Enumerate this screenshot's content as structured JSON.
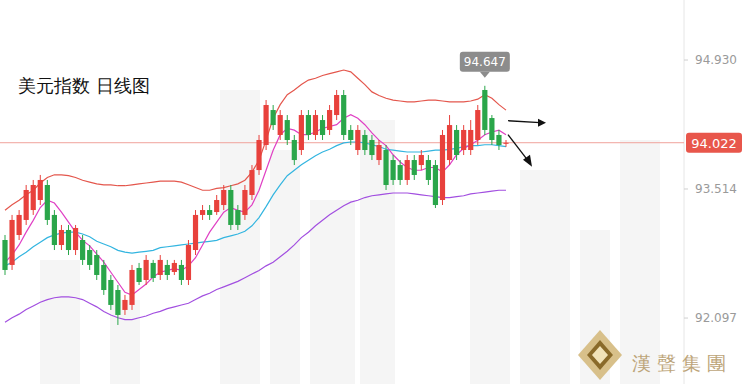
{
  "chart_data": {
    "type": "candlestick",
    "title": "美元指数 日线图",
    "categories": [
      null,
      null,
      null,
      null,
      null,
      null,
      null,
      null,
      null,
      null,
      null,
      null,
      null,
      null,
      null,
      null,
      null,
      null,
      null,
      null,
      null,
      null,
      null,
      null,
      null,
      null,
      null,
      null,
      null,
      null,
      null,
      null,
      null,
      null,
      null,
      null,
      null,
      null,
      null,
      null,
      null,
      null,
      null,
      null,
      null,
      null,
      null,
      null,
      null,
      null,
      null,
      null,
      null,
      null,
      null,
      null,
      null,
      null,
      null,
      null,
      null,
      null,
      null,
      null,
      null,
      null,
      null,
      null,
      null,
      null,
      null,
      null
    ],
    "open": [
      92.954,
      92.68,
      93.009,
      93.174,
      93.283,
      93.393,
      93.558,
      93.229,
      92.899,
      93.064,
      92.844,
      92.954,
      92.844,
      92.789,
      92.68,
      92.515,
      92.405,
      92.186,
      92.241,
      92.647,
      92.515,
      92.702,
      92.57,
      92.68,
      92.603,
      92.68,
      92.515,
      92.844,
      93.229,
      93.283,
      93.261,
      93.338,
      93.503,
      93.283,
      93.229,
      93.448,
      93.722,
      93.997,
      94.381,
      94.107,
      94.271,
      94.052,
      93.942,
      94.326,
      94.107,
      94.271,
      94.162,
      94.326,
      94.546,
      94.162,
      93.942,
      94.107,
      94.052,
      93.832,
      93.942,
      93.832,
      93.777,
      93.613,
      93.832,
      93.777,
      93.832,
      93.777,
      93.393,
      93.832,
      94.162,
      93.942,
      93.942,
      94.052,
      94.601,
      94.293,
      94.107,
      94.01
    ],
    "high": [
      93.009,
      93.229,
      93.283,
      93.558,
      93.613,
      93.668,
      93.613,
      93.283,
      93.119,
      93.119,
      93.119,
      93.009,
      92.899,
      92.844,
      92.735,
      92.57,
      92.46,
      92.351,
      92.68,
      92.702,
      92.789,
      92.735,
      92.789,
      92.735,
      92.735,
      92.735,
      92.954,
      93.283,
      93.338,
      93.338,
      93.448,
      93.558,
      93.558,
      93.338,
      93.558,
      93.777,
      94.107,
      94.491,
      94.436,
      94.381,
      94.326,
      94.107,
      94.381,
      94.381,
      94.381,
      94.326,
      94.436,
      94.601,
      94.601,
      94.216,
      94.216,
      94.162,
      94.107,
      94.052,
      93.997,
      93.887,
      93.832,
      93.887,
      93.887,
      93.942,
      93.887,
      93.832,
      94.162,
      94.326,
      94.216,
      94.216,
      94.271,
      94.436,
      94.647,
      94.326,
      94.162,
      94.052
    ],
    "low": [
      92.57,
      92.625,
      92.954,
      93.119,
      93.229,
      93.338,
      93.119,
      92.844,
      92.844,
      92.789,
      92.789,
      92.68,
      92.625,
      92.515,
      92.351,
      92.186,
      92.021,
      92.131,
      92.186,
      92.46,
      92.46,
      92.493,
      92.515,
      92.515,
      92.57,
      92.46,
      92.46,
      92.789,
      93.174,
      93.174,
      93.229,
      93.283,
      93.064,
      93.064,
      93.174,
      93.393,
      93.668,
      93.942,
      94.162,
      94.052,
      93.997,
      93.777,
      93.887,
      94.052,
      94.052,
      94.052,
      94.107,
      94.271,
      94.052,
      93.997,
      93.887,
      93.887,
      93.832,
      93.777,
      93.503,
      93.558,
      93.558,
      93.558,
      93.613,
      93.722,
      93.558,
      93.305,
      93.338,
      93.777,
      93.832,
      93.887,
      93.887,
      93.997,
      94.107,
      93.997,
      93.942,
      93.977
    ],
    "close": [
      92.625,
      93.174,
      93.229,
      93.503,
      93.558,
      93.613,
      93.174,
      92.899,
      93.064,
      92.844,
      93.086,
      92.735,
      92.68,
      92.57,
      92.405,
      92.241,
      92.131,
      92.296,
      92.625,
      92.493,
      92.735,
      92.537,
      92.735,
      92.57,
      92.702,
      92.515,
      92.899,
      93.229,
      93.283,
      93.229,
      93.393,
      93.503,
      93.119,
      93.119,
      93.503,
      93.722,
      94.052,
      94.436,
      94.216,
      94.326,
      94.052,
      93.832,
      94.326,
      94.107,
      94.326,
      94.107,
      94.381,
      94.546,
      94.107,
      94.052,
      94.162,
      93.942,
      93.887,
      93.997,
      93.558,
      93.613,
      93.613,
      93.832,
      93.668,
      93.887,
      93.613,
      93.338,
      94.107,
      94.216,
      93.887,
      94.162,
      94.162,
      94.381,
      94.162,
      94.052,
      93.997,
      94.022
    ],
    "series": [
      {
        "type": "line",
        "color": "#e4574d",
        "values": [
          93.28,
          93.34,
          93.39,
          93.45,
          93.5,
          93.58,
          93.64,
          93.67,
          93.67,
          93.66,
          93.64,
          93.61,
          93.59,
          93.57,
          93.56,
          93.56,
          93.55,
          93.55,
          93.56,
          93.57,
          93.58,
          93.59,
          93.6,
          93.6,
          93.6,
          93.59,
          93.56,
          93.53,
          93.5,
          93.5,
          93.52,
          93.53,
          93.55,
          93.57,
          93.61,
          93.7,
          93.83,
          94.05,
          94.29,
          94.44,
          94.55,
          94.6,
          94.66,
          94.71,
          94.73,
          94.76,
          94.78,
          94.8,
          94.82,
          94.8,
          94.73,
          94.66,
          94.58,
          94.54,
          94.51,
          94.49,
          94.48,
          94.47,
          94.47,
          94.48,
          94.49,
          94.49,
          94.48,
          94.47,
          94.47,
          94.47,
          94.48,
          94.5,
          94.55,
          94.51,
          94.44,
          94.38
        ]
      },
      {
        "type": "line",
        "color": "#33b5e0",
        "values": [
          92.67,
          92.71,
          92.77,
          92.82,
          92.88,
          92.93,
          92.98,
          93.01,
          93.03,
          93.04,
          93.04,
          93.02,
          92.99,
          92.94,
          92.91,
          92.88,
          92.84,
          92.82,
          92.81,
          92.82,
          92.83,
          92.84,
          92.87,
          92.88,
          92.89,
          92.9,
          92.91,
          92.92,
          92.93,
          92.94,
          92.95,
          92.98,
          93.0,
          93.02,
          93.05,
          93.11,
          93.2,
          93.32,
          93.45,
          93.56,
          93.66,
          93.72,
          93.78,
          93.83,
          93.88,
          93.92,
          93.95,
          93.99,
          94.02,
          94.03,
          94.03,
          94.02,
          94.0,
          93.98,
          93.95,
          93.94,
          93.93,
          93.92,
          93.92,
          93.92,
          93.93,
          93.94,
          93.94,
          93.95,
          93.96,
          93.98,
          93.99,
          93.99,
          94.0,
          94.0,
          93.99,
          93.98
        ]
      },
      {
        "type": "line",
        "color": "#a24fe0",
        "values": [
          92.05,
          92.1,
          92.14,
          92.19,
          92.23,
          92.27,
          92.3,
          92.32,
          92.33,
          92.33,
          92.32,
          92.3,
          92.26,
          92.22,
          92.17,
          92.13,
          92.1,
          92.08,
          92.08,
          92.1,
          92.12,
          92.15,
          92.17,
          92.2,
          92.22,
          92.24,
          92.26,
          92.3,
          92.34,
          92.37,
          92.41,
          92.44,
          92.47,
          92.5,
          92.54,
          92.58,
          92.62,
          92.67,
          92.71,
          92.77,
          92.83,
          92.9,
          92.98,
          93.04,
          93.11,
          93.17,
          93.23,
          93.28,
          93.33,
          93.37,
          93.39,
          93.42,
          93.44,
          93.45,
          93.46,
          93.47,
          93.47,
          93.47,
          93.46,
          93.45,
          93.44,
          93.43,
          93.42,
          93.42,
          93.43,
          93.44,
          93.46,
          93.47,
          93.48,
          93.49,
          93.5,
          93.5
        ]
      },
      {
        "type": "line",
        "color": "#e040c4",
        "values": [
          92.71,
          92.79,
          92.9,
          93.04,
          93.17,
          93.31,
          93.39,
          93.36,
          93.26,
          93.15,
          93.04,
          92.95,
          92.89,
          92.8,
          92.71,
          92.6,
          92.49,
          92.38,
          92.35,
          92.41,
          92.47,
          92.55,
          92.6,
          92.62,
          92.64,
          92.62,
          92.67,
          92.76,
          92.9,
          93.04,
          93.15,
          93.26,
          93.31,
          93.28,
          93.26,
          93.34,
          93.5,
          93.72,
          93.94,
          94.11,
          94.18,
          94.16,
          94.11,
          94.11,
          94.14,
          94.18,
          94.2,
          94.22,
          94.29,
          94.33,
          94.29,
          94.22,
          94.13,
          94.05,
          93.99,
          93.89,
          93.81,
          93.75,
          93.72,
          93.72,
          93.75,
          93.75,
          93.7,
          93.78,
          93.89,
          93.96,
          94.0,
          94.05,
          94.11,
          94.14,
          94.16,
          94.11
        ]
      }
    ],
    "ylim": [
      91.373,
      95.589
    ],
    "yticks": [
      {
        "value": 94.93,
        "label": "94.930"
      },
      {
        "value": 93.514,
        "label": "93.514"
      },
      {
        "value": 92.097,
        "label": "92.097"
      }
    ],
    "grid": false,
    "annotations": [
      {
        "text": "94.647",
        "value": 94.647,
        "index": 68
      },
      {
        "text": "94.022",
        "value": 94.022
      },
      {
        "text": "漢聲集團"
      }
    ]
  }
}
